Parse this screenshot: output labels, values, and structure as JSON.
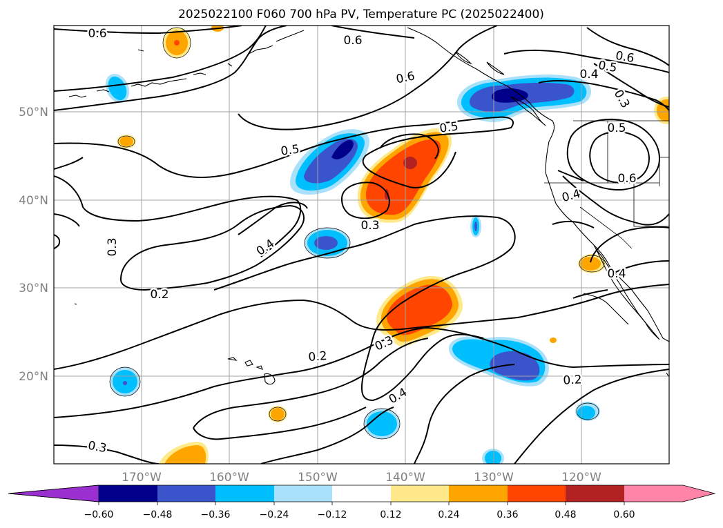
{
  "title": "2025022100 F060 700 hPa PV, Temperature PC (2025022400)",
  "colors": {
    "neg_060": "#9b30d0",
    "neg_048": "#00008b",
    "neg_036": "#3a55cc",
    "neg_024": "#00bfff",
    "neg_012": "#a9e1fb",
    "pos_012": "#ffe98a",
    "pos_024": "#ffa500",
    "pos_036": "#ff4500",
    "pos_048": "#b22222",
    "pos_060": "#ff85a8"
  },
  "axes": {
    "lon_labels": [
      "170°W",
      "160°W",
      "150°W",
      "140°W",
      "130°W",
      "120°W"
    ],
    "lat_labels": [
      "50°N",
      "40°N",
      "30°N",
      "20°N"
    ]
  },
  "colorbar": {
    "ticks": [
      "−0.60",
      "−0.48",
      "−0.36",
      "−0.24",
      "−0.12",
      "0.12",
      "0.24",
      "0.36",
      "0.48",
      "0.60"
    ]
  },
  "contour_labels": [
    {
      "id": "c06a",
      "text": "0.6"
    },
    {
      "id": "c06b",
      "text": "0.6"
    },
    {
      "id": "c06c",
      "text": "0.6"
    },
    {
      "id": "c06d",
      "text": "0.6"
    },
    {
      "id": "c06e",
      "text": "0.6"
    },
    {
      "id": "c05a",
      "text": "0.5"
    },
    {
      "id": "c05b",
      "text": "0.5"
    },
    {
      "id": "c05c",
      "text": "0.5"
    },
    {
      "id": "c05d",
      "text": "0.5"
    },
    {
      "id": "c04a",
      "text": "0.4"
    },
    {
      "id": "c04b",
      "text": "0.4"
    },
    {
      "id": "c04c",
      "text": "0.4"
    },
    {
      "id": "c04d",
      "text": "0.4"
    },
    {
      "id": "c04e",
      "text": "0.4"
    },
    {
      "id": "c03a",
      "text": "0.3"
    },
    {
      "id": "c03b",
      "text": "0.3"
    },
    {
      "id": "c03c",
      "text": "0.3"
    },
    {
      "id": "c03d",
      "text": "0.3"
    },
    {
      "id": "c03e",
      "text": "0.3"
    },
    {
      "id": "c02a",
      "text": "0.2"
    },
    {
      "id": "c02b",
      "text": "0.2"
    },
    {
      "id": "c02c",
      "text": "0.2"
    }
  ]
}
